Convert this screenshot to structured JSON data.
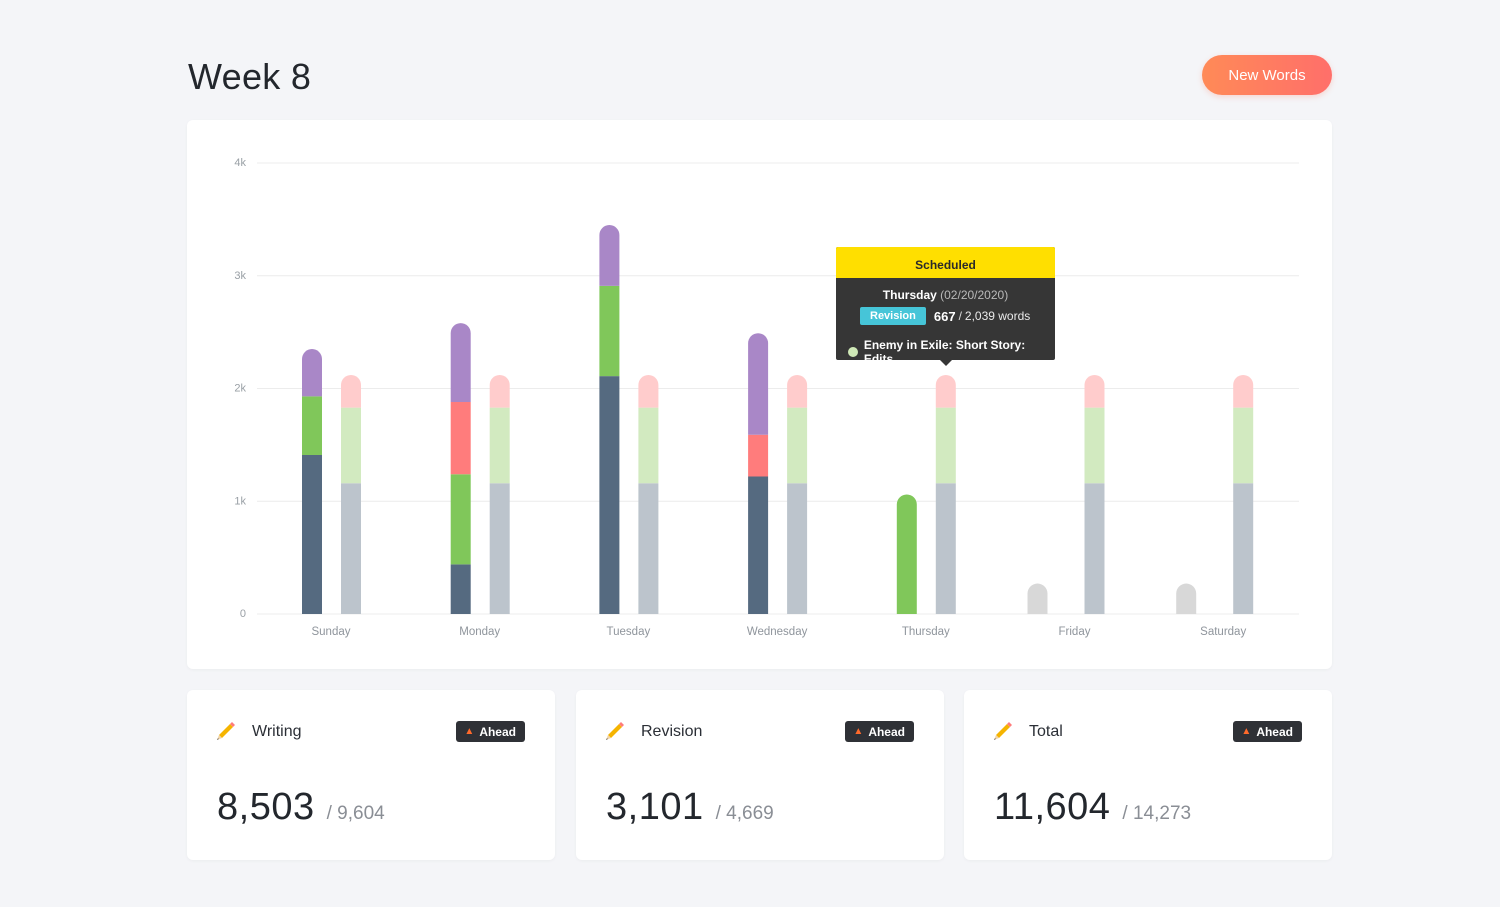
{
  "header": {
    "title": "Week 8",
    "new_words_label": "New Words"
  },
  "colors": {
    "writing": "#556a80",
    "writing_scheduled": "#bcc4cc",
    "revision": "#80c75a",
    "revision_scheduled": "#d2eac0",
    "red": "#ff7c7c",
    "pink_scheduled": "#ffcccc",
    "purple": "#a987c7",
    "empty": "#d8d8d8",
    "accent": "#ff7a5e"
  },
  "chart_data": {
    "type": "bar",
    "y_ticks": [
      "0",
      "1k",
      "2k",
      "3k",
      "4k"
    ],
    "ylim": [
      0,
      4000
    ],
    "categories": [
      "Sunday",
      "Monday",
      "Tuesday",
      "Wednesday",
      "Thursday",
      "Friday",
      "Saturday"
    ],
    "actual": [
      [
        {
          "c": "#556a80",
          "v": 1410
        },
        {
          "c": "#80c75a",
          "v": 520
        },
        {
          "c": "#a987c7",
          "v": 420
        }
      ],
      [
        {
          "c": "#556a80",
          "v": 440
        },
        {
          "c": "#80c75a",
          "v": 800
        },
        {
          "c": "#ff7c7c",
          "v": 640
        },
        {
          "c": "#a987c7",
          "v": 700
        }
      ],
      [
        {
          "c": "#556a80",
          "v": 2110
        },
        {
          "c": "#80c75a",
          "v": 800
        },
        {
          "c": "#a987c7",
          "v": 540
        }
      ],
      [
        {
          "c": "#556a80",
          "v": 1220
        },
        {
          "c": "#ff7c7c",
          "v": 370
        },
        {
          "c": "#a987c7",
          "v": 900
        }
      ],
      [
        {
          "c": "#80c75a",
          "v": 1060
        }
      ],
      [
        {
          "c": "#d8d8d8",
          "v": 270
        }
      ],
      [
        {
          "c": "#d8d8d8",
          "v": 270
        }
      ]
    ],
    "scheduled": [
      [
        {
          "c": "#bcc4cc",
          "v": 1160
        },
        {
          "c": "#d2eac0",
          "v": 670
        },
        {
          "c": "#ffcccc",
          "v": 290
        }
      ],
      [
        {
          "c": "#bcc4cc",
          "v": 1160
        },
        {
          "c": "#d2eac0",
          "v": 670
        },
        {
          "c": "#ffcccc",
          "v": 290
        }
      ],
      [
        {
          "c": "#bcc4cc",
          "v": 1160
        },
        {
          "c": "#d2eac0",
          "v": 670
        },
        {
          "c": "#ffcccc",
          "v": 290
        }
      ],
      [
        {
          "c": "#bcc4cc",
          "v": 1160
        },
        {
          "c": "#d2eac0",
          "v": 670
        },
        {
          "c": "#ffcccc",
          "v": 290
        }
      ],
      [
        {
          "c": "#bcc4cc",
          "v": 1160
        },
        {
          "c": "#d2eac0",
          "v": 670
        },
        {
          "c": "#ffcccc",
          "v": 290
        }
      ],
      [
        {
          "c": "#bcc4cc",
          "v": 1160
        },
        {
          "c": "#d2eac0",
          "v": 670
        },
        {
          "c": "#ffcccc",
          "v": 290
        }
      ],
      [
        {
          "c": "#bcc4cc",
          "v": 1160
        },
        {
          "c": "#d2eac0",
          "v": 670
        },
        {
          "c": "#ffcccc",
          "v": 290
        }
      ]
    ],
    "has_scheduled": [
      true,
      true,
      true,
      true,
      true,
      false,
      false
    ],
    "grid": true
  },
  "tooltip": {
    "header": "Scheduled",
    "day": "Thursday",
    "date": "(02/20/2020)",
    "badge": "Revision",
    "count": "667",
    "separator": "/",
    "goal": "2,039 words",
    "project": "Enemy in Exile: Short Story: Edits"
  },
  "stats": [
    {
      "label": "Writing",
      "badge": "Ahead",
      "value": "8,503",
      "goal": "/ 9,604"
    },
    {
      "label": "Revision",
      "badge": "Ahead",
      "value": "3,101",
      "goal": "/ 4,669"
    },
    {
      "label": "Total",
      "badge": "Ahead",
      "value": "11,604",
      "goal": "/ 14,273"
    }
  ]
}
